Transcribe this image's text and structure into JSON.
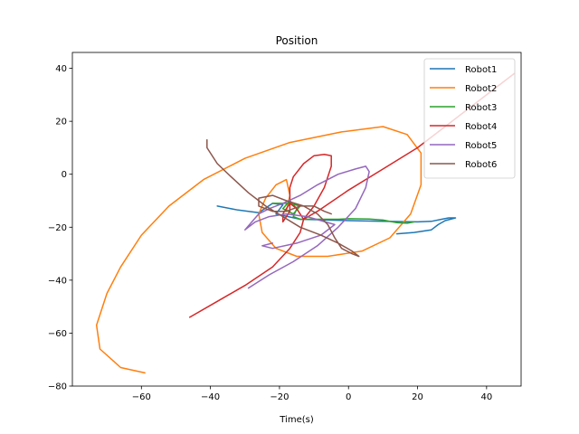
{
  "chart_data": {
    "type": "line",
    "title": "Position",
    "xlabel": "Time(s)",
    "ylabel": "",
    "xlim": [
      -80,
      50
    ],
    "ylim": [
      -80,
      46
    ],
    "xticks": [
      -60,
      -40,
      -20,
      0,
      20,
      40
    ],
    "yticks": [
      -80,
      -60,
      -40,
      -20,
      0,
      20,
      40
    ],
    "grid": false,
    "legend_position": "top-right",
    "series": [
      {
        "name": "Robot1",
        "color": "#1f77b4",
        "points": [
          [
            -38,
            -12
          ],
          [
            -32,
            -13.5
          ],
          [
            -26,
            -14.5
          ],
          [
            -22,
            -11
          ],
          [
            -19,
            -11.5
          ],
          [
            -21,
            -15
          ],
          [
            -14,
            -17
          ],
          [
            0,
            -17.5
          ],
          [
            10,
            -17.8
          ],
          [
            20,
            -18
          ],
          [
            24,
            -17.8
          ],
          [
            27,
            -17
          ],
          [
            29,
            -16.5
          ],
          [
            31,
            -16.5
          ],
          [
            28,
            -17.5
          ],
          [
            26,
            -19
          ],
          [
            24,
            -21
          ],
          [
            19,
            -22
          ],
          [
            14,
            -22.5
          ]
        ]
      },
      {
        "name": "Robot2",
        "color": "#ff7f0e",
        "points": [
          [
            -59,
            -75
          ],
          [
            -66,
            -73
          ],
          [
            -72,
            -66
          ],
          [
            -73,
            -57
          ],
          [
            -70,
            -45
          ],
          [
            -66,
            -35
          ],
          [
            -60,
            -23
          ],
          [
            -52,
            -12
          ],
          [
            -42,
            -2
          ],
          [
            -30,
            6
          ],
          [
            -17,
            12
          ],
          [
            -2,
            16
          ],
          [
            10,
            18
          ],
          [
            17,
            15
          ],
          [
            21,
            8
          ],
          [
            21,
            -4
          ],
          [
            18,
            -15
          ],
          [
            12,
            -24
          ],
          [
            4,
            -29
          ],
          [
            -6,
            -31
          ],
          [
            -15,
            -31
          ],
          [
            -21,
            -28
          ],
          [
            -25,
            -22
          ],
          [
            -26,
            -15
          ],
          [
            -24,
            -9
          ],
          [
            -21,
            -4
          ],
          [
            -18,
            -2
          ],
          [
            -17,
            -8
          ],
          [
            -18,
            -14
          ]
        ]
      },
      {
        "name": "Robot3",
        "color": "#2ca02c",
        "points": [
          [
            -22,
            -11
          ],
          [
            -17,
            -11
          ],
          [
            -14,
            -12
          ],
          [
            -16,
            -15
          ],
          [
            -19,
            -13
          ],
          [
            -17,
            -10
          ],
          [
            -15,
            -13
          ],
          [
            -16,
            -16
          ],
          [
            -14,
            -17
          ],
          [
            -10,
            -17
          ],
          [
            -3,
            -17
          ],
          [
            0,
            -16.8
          ],
          [
            6,
            -16.9
          ],
          [
            10,
            -17.3
          ],
          [
            14,
            -18.3
          ],
          [
            17,
            -18.5
          ],
          [
            19,
            -18
          ]
        ]
      },
      {
        "name": "Robot4",
        "color": "#d62728",
        "points": [
          [
            -46,
            -54
          ],
          [
            -38,
            -48
          ],
          [
            -30,
            -42
          ],
          [
            -22,
            -35
          ],
          [
            -17,
            -28
          ],
          [
            -14,
            -22
          ],
          [
            -13,
            -17
          ],
          [
            -15,
            -13
          ],
          [
            -17,
            -11
          ],
          [
            -19,
            -15
          ],
          [
            -19,
            -18
          ],
          [
            -17,
            -14
          ],
          [
            -17,
            -5
          ],
          [
            -16,
            -1
          ],
          [
            -13,
            4
          ],
          [
            -10,
            7
          ],
          [
            -7,
            7.5
          ],
          [
            -5,
            7
          ],
          [
            -5,
            3
          ],
          [
            -7,
            -5
          ],
          [
            -10,
            -12
          ],
          [
            -13,
            -17
          ],
          [
            -9,
            -14
          ],
          [
            0,
            -6
          ],
          [
            10,
            2
          ],
          [
            20,
            10
          ],
          [
            30,
            20
          ],
          [
            40,
            30
          ],
          [
            48,
            38
          ]
        ]
      },
      {
        "name": "Robot5",
        "color": "#9467bd",
        "points": [
          [
            -29,
            -43
          ],
          [
            -23,
            -38
          ],
          [
            -16,
            -33
          ],
          [
            -9,
            -27
          ],
          [
            -3,
            -20
          ],
          [
            2,
            -13
          ],
          [
            5,
            -5
          ],
          [
            6,
            1
          ],
          [
            5,
            3
          ],
          [
            2,
            2
          ],
          [
            -3,
            0
          ],
          [
            -9,
            -4
          ],
          [
            -14,
            -8
          ],
          [
            -19,
            -11
          ],
          [
            -23,
            -13
          ],
          [
            -26,
            -15
          ],
          [
            -28,
            -18
          ],
          [
            -30,
            -21
          ],
          [
            -27,
            -18
          ],
          [
            -23,
            -16
          ],
          [
            -18,
            -15
          ],
          [
            -12,
            -16
          ],
          [
            -4,
            -19
          ],
          [
            -8,
            -23
          ],
          [
            -15,
            -26
          ],
          [
            -22,
            -28
          ],
          [
            -25,
            -27
          ],
          [
            -22,
            -26
          ]
        ]
      },
      {
        "name": "Robot6",
        "color": "#8c564b",
        "points": [
          [
            -41,
            13
          ],
          [
            -41,
            10
          ],
          [
            -38,
            4
          ],
          [
            -34,
            -1
          ],
          [
            -29,
            -7
          ],
          [
            -24,
            -12
          ],
          [
            -19,
            -16
          ],
          [
            -14,
            -20
          ],
          [
            -8,
            -23
          ],
          [
            -3,
            -26
          ],
          [
            1,
            -29
          ],
          [
            3,
            -31
          ],
          [
            1,
            -30
          ],
          [
            -2,
            -28
          ],
          [
            -4,
            -24
          ],
          [
            -6,
            -19
          ],
          [
            -9,
            -15
          ],
          [
            -13,
            -12
          ],
          [
            -18,
            -10
          ],
          [
            -22,
            -8
          ],
          [
            -26,
            -9
          ],
          [
            -26,
            -12
          ],
          [
            -22,
            -14
          ],
          [
            -18,
            -14
          ],
          [
            -14,
            -12
          ],
          [
            -10,
            -12
          ],
          [
            -7,
            -14
          ],
          [
            -5,
            -15
          ]
        ]
      }
    ]
  }
}
